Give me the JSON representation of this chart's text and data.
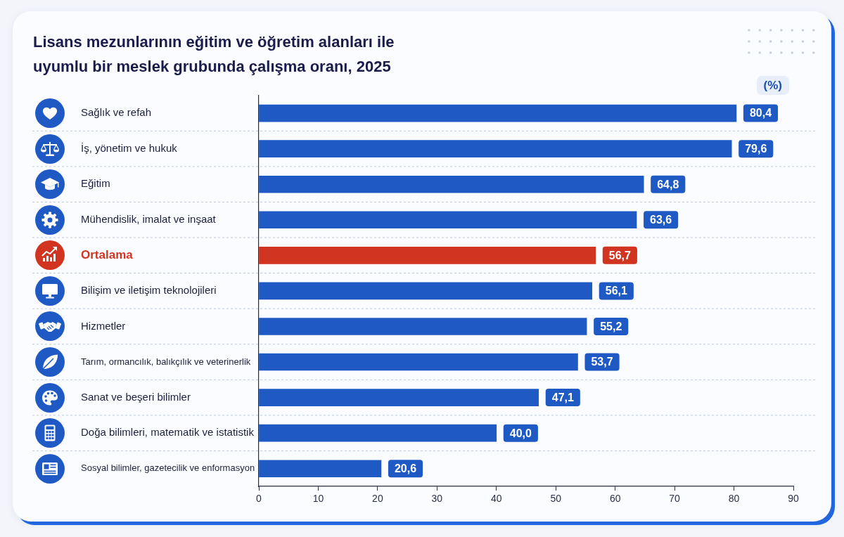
{
  "chart_data": {
    "type": "bar",
    "orientation": "horizontal",
    "title": "Lisans mezunlarının eğitim ve öğretim alanları ile uyumlu bir meslek grubunda çalışma oranı, 2025",
    "categories": [
      "Sağlık ve refah",
      "İş, yönetim ve hukuk",
      "Eğitim",
      "Mühendislik, imalat ve inşaat",
      "Ortalama",
      "Bilişim ve iletişim teknolojileri",
      "Hizmetler",
      "Tarım, ormancılık, balıkçılık ve veterinerlik",
      "Sanat ve beşeri bilimler",
      "Doğa bilimleri, matematik ve istatistik",
      "Sosyal bilimler, gazetecilik ve enformasyon"
    ],
    "values": [
      80.4,
      79.6,
      64.8,
      63.6,
      56.7,
      56.1,
      55.2,
      53.7,
      47.1,
      40.0,
      20.6
    ],
    "value_labels": [
      "80,4",
      "79,6",
      "64,8",
      "63,6",
      "56,7",
      "56,1",
      "55,2",
      "53,7",
      "47,1",
      "40,0",
      "20,6"
    ],
    "color": "#1f5ac4",
    "colors": [
      "#1f5ac4",
      "#1f5ac4",
      "#1f5ac4",
      "#1f5ac4",
      "#d13420",
      "#1f5ac4",
      "#1f5ac4",
      "#1f5ac4",
      "#1f5ac4",
      "#1f5ac4",
      "#1f5ac4"
    ],
    "xlim": [
      0,
      90
    ],
    "xticks": [
      0,
      10,
      20,
      30,
      40,
      50,
      60,
      70,
      80,
      90
    ],
    "grid": "y",
    "annotations": [
      "(%)"
    ]
  }
}
